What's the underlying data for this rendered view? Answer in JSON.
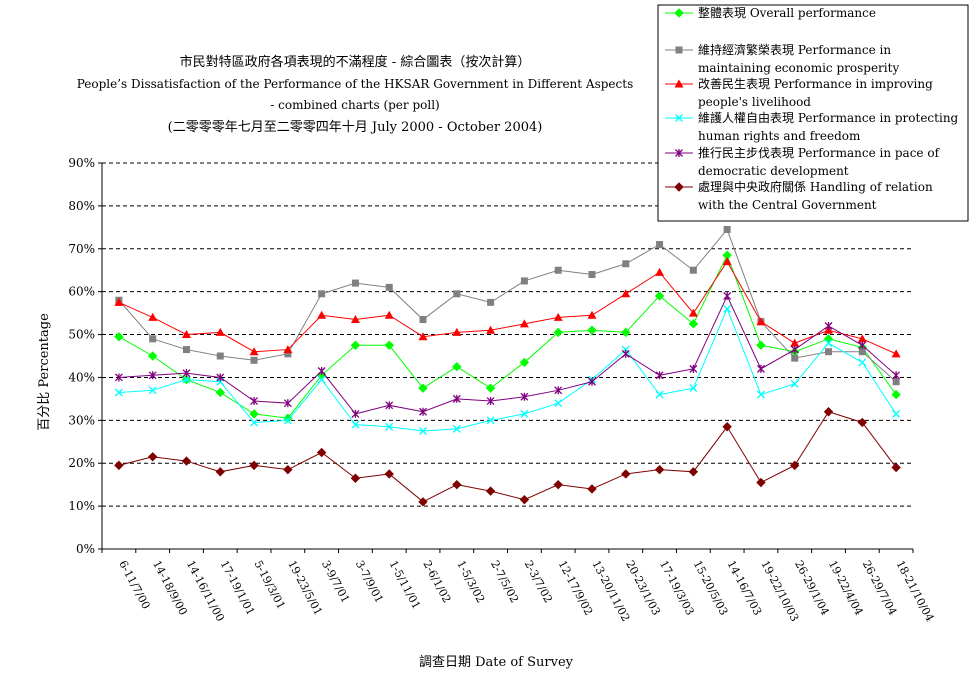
{
  "title": {
    "line1": "市民對特區政府各項表現的不滿程度  -  綜合圖表（按次計算）",
    "line2": "People’s Dissatisfaction of the Performance of the HKSAR Government in Different Aspects",
    "line3": "- combined charts  (per poll)",
    "line4": "(二零零零年七月至二零零四年十月 July 2000 - October 2004)"
  },
  "chart_data": {
    "type": "line",
    "title": "市民對特區政府各項表現的不滿程度 - 綜合圖表（按次計算） People’s Dissatisfaction of the Performance of the HKSAR Government in Different Aspects - combined charts (per poll)",
    "subtitle": "(二零零零年七月至二零零四年十月 July 2000 - October 2004)",
    "xlabel": "調查日期 Date of Survey",
    "ylabel": "百分比 Percentage",
    "ylim": [
      0,
      90
    ],
    "yticks": [
      0,
      10,
      20,
      30,
      40,
      50,
      60,
      70,
      80,
      90
    ],
    "ytick_labels": [
      "0%",
      "10%",
      "20%",
      "30%",
      "40%",
      "50%",
      "60%",
      "70%",
      "80%",
      "90%"
    ],
    "grid": "horizontal dashed",
    "legend_position": "top-right",
    "categories": [
      "6-11/7/00",
      "14-18/9/00",
      "14-16/11/00",
      "17-19/1/01",
      "5-19/3/01",
      "19-23/5/01",
      "3-9/7/01",
      "3-7/9/01",
      "1-5/11/01",
      "2-6/1/02",
      "1-5/3/02",
      "2-7/5/02",
      "2-3/7/02",
      "12-17/9/02",
      "13-20/11/02",
      "20-23/1/03",
      "17-19/3/03",
      "15-20/5/03",
      "14-16/7/03",
      "19-22/10/03",
      "26-29/1/04",
      "19-22/4/04",
      "26-29/7/04",
      "18-21/10/04"
    ],
    "series": [
      {
        "name": "整體表現 Overall performance",
        "legend_lines": [
          "整體表現 Overall performance"
        ],
        "color": "#00ff00",
        "marker": "diamond",
        "values": [
          49.5,
          45,
          39.5,
          36.5,
          31.5,
          30.5,
          40.5,
          47.5,
          47.5,
          37.5,
          42.5,
          37.5,
          43.5,
          50.5,
          51,
          50.5,
          59,
          52.5,
          68.5,
          47.5,
          46,
          49,
          47,
          36
        ]
      },
      {
        "name": "維持經濟繁榮表現 Performance in maintaining economic prosperity",
        "legend_lines": [
          "維持經濟繁榮表現 Performance in",
          "maintaining economic prosperity"
        ],
        "color": "#808080",
        "marker": "square",
        "values": [
          58,
          49,
          46.5,
          45,
          44,
          45.5,
          59.5,
          62,
          61,
          53.5,
          59.5,
          57.5,
          62.5,
          65,
          64,
          66.5,
          71,
          65,
          74.5,
          53,
          44.5,
          46,
          46,
          39
        ]
      },
      {
        "name": "改善民生表現 Performance in improving people's livelihood",
        "legend_lines": [
          "改善民生表現 Performance in improving",
          "people's livelihood"
        ],
        "color": "#ff0000",
        "marker": "triangle",
        "values": [
          57.5,
          54,
          50,
          50.5,
          46,
          46.5,
          54.5,
          53.5,
          54.5,
          49.5,
          50.5,
          51,
          52.5,
          54,
          54.5,
          59.5,
          64.5,
          55,
          67,
          53,
          48,
          51,
          49,
          45.5
        ]
      },
      {
        "name": "維護人權自由表現 Performance in protecting human rights and freedom",
        "legend_lines": [
          "維護人權自由表現 Performance in protecting",
          "human rights and freedom"
        ],
        "color": "#00ffff",
        "marker": "x",
        "values": [
          36.5,
          37,
          39.5,
          39,
          29.5,
          30,
          39.5,
          29,
          28.5,
          27.5,
          28,
          30,
          31.5,
          34,
          39.5,
          46.5,
          36,
          37.5,
          56,
          36,
          38.5,
          48,
          43.5,
          31.5
        ]
      },
      {
        "name": "推行民主步伐表現 Performance in pace of democratic development",
        "legend_lines": [
          "推行民主步伐表現 Performance in pace of",
          "democratic development"
        ],
        "color": "#800080",
        "marker": "star",
        "values": [
          40,
          40.5,
          41,
          40,
          34.5,
          34,
          41.5,
          31.5,
          33.5,
          32,
          35,
          34.5,
          35.5,
          37,
          39,
          45.5,
          40.5,
          42,
          59,
          42,
          46.5,
          52,
          47.5,
          40.5
        ]
      },
      {
        "name": "處理與中央政府關係 Handling of relation with the Central Government",
        "legend_lines": [
          "處理與中央政府關係 Handling of relation",
          "with the Central Government"
        ],
        "color": "#800000",
        "marker": "diamond",
        "values": [
          19.5,
          21.5,
          20.5,
          18,
          19.5,
          18.5,
          22.5,
          16.5,
          17.5,
          11,
          15,
          13.5,
          11.5,
          15,
          14,
          17.5,
          18.5,
          18,
          28.5,
          15.5,
          19.5,
          32,
          29.5,
          19
        ]
      }
    ]
  }
}
